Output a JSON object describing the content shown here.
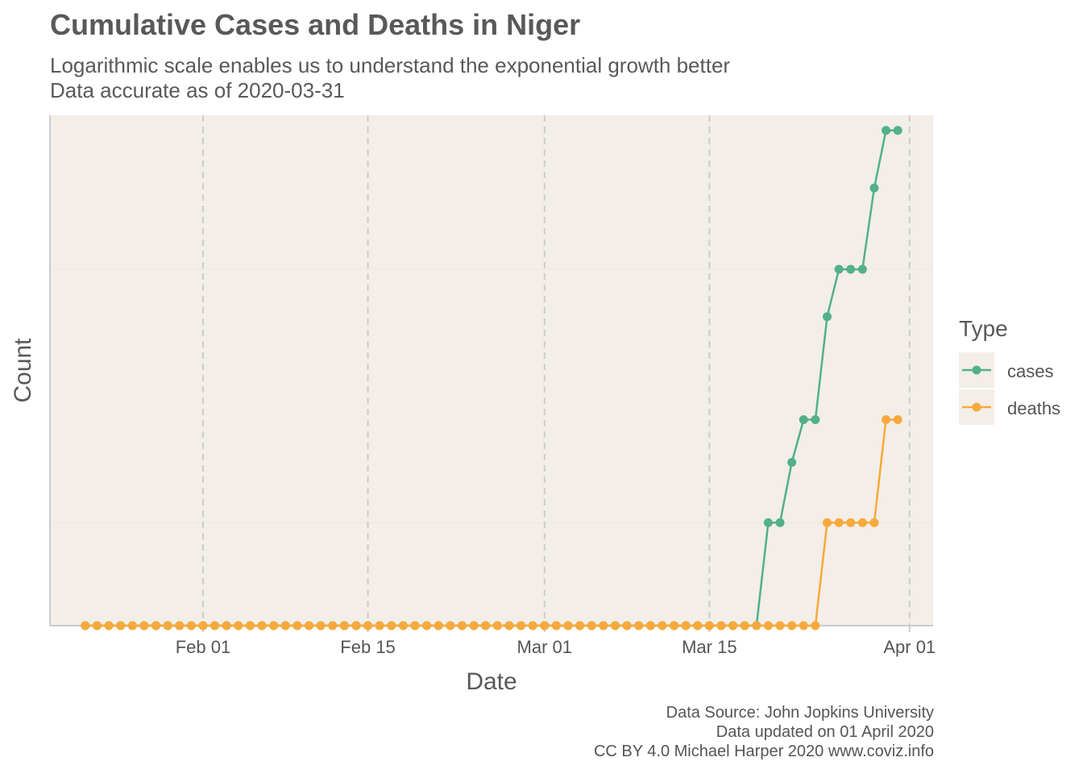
{
  "title": "Cumulative Cases and Deaths in Niger",
  "subtitle_line1": "Logarithmic scale enables us to understand the exponential growth better",
  "subtitle_line2": "Data accurate as of 2020-03-31",
  "captions": {
    "line1": "Data Source: John Jopkins University",
    "line2": "Data updated on 01 April 2020",
    "line3": "CC BY 4.0 Michael Harper 2020 www.coviz.info"
  },
  "legend": {
    "title": "Type",
    "items": [
      {
        "label": "cases",
        "color": "#52b08a"
      },
      {
        "label": "deaths",
        "color": "#f7a93b"
      }
    ]
  },
  "colors": {
    "panel_background": "#f3eee7",
    "vertical_grid": "#cccccc",
    "axis": "#cccccc"
  },
  "chart_data": {
    "type": "line",
    "title": "Cumulative Cases and Deaths in Niger",
    "xlabel": "Date",
    "ylabel": "Count",
    "y_scale": "log",
    "y_tick_labels_shown": false,
    "x_ticks": [
      {
        "date": "2020-02-01",
        "label": "Feb 01"
      },
      {
        "date": "2020-02-15",
        "label": "Feb 15"
      },
      {
        "date": "2020-03-01",
        "label": "Mar 01"
      },
      {
        "date": "2020-03-15",
        "label": "Mar 15"
      },
      {
        "date": "2020-04-01",
        "label": "Apr 01"
      }
    ],
    "xlim": [
      "2020-01-19",
      "2020-04-03"
    ],
    "ylim": [
      0,
      30
    ],
    "grid": "vertical dashed at x ticks",
    "legend_position": "right",
    "dates": [
      "2020-01-22",
      "2020-01-23",
      "2020-01-24",
      "2020-01-25",
      "2020-01-26",
      "2020-01-27",
      "2020-01-28",
      "2020-01-29",
      "2020-01-30",
      "2020-01-31",
      "2020-02-01",
      "2020-02-02",
      "2020-02-03",
      "2020-02-04",
      "2020-02-05",
      "2020-02-06",
      "2020-02-07",
      "2020-02-08",
      "2020-02-09",
      "2020-02-10",
      "2020-02-11",
      "2020-02-12",
      "2020-02-13",
      "2020-02-14",
      "2020-02-15",
      "2020-02-16",
      "2020-02-17",
      "2020-02-18",
      "2020-02-19",
      "2020-02-20",
      "2020-02-21",
      "2020-02-22",
      "2020-02-23",
      "2020-02-24",
      "2020-02-25",
      "2020-02-26",
      "2020-02-27",
      "2020-02-28",
      "2020-02-29",
      "2020-03-01",
      "2020-03-02",
      "2020-03-03",
      "2020-03-04",
      "2020-03-05",
      "2020-03-06",
      "2020-03-07",
      "2020-03-08",
      "2020-03-09",
      "2020-03-10",
      "2020-03-11",
      "2020-03-12",
      "2020-03-13",
      "2020-03-14",
      "2020-03-15",
      "2020-03-16",
      "2020-03-17",
      "2020-03-18",
      "2020-03-19",
      "2020-03-20",
      "2020-03-21",
      "2020-03-22",
      "2020-03-23",
      "2020-03-24",
      "2020-03-25",
      "2020-03-26",
      "2020-03-27",
      "2020-03-28",
      "2020-03-29",
      "2020-03-30",
      "2020-03-31"
    ],
    "series": [
      {
        "name": "cases",
        "color": "#52b08a",
        "values": [
          0,
          0,
          0,
          0,
          0,
          0,
          0,
          0,
          0,
          0,
          0,
          0,
          0,
          0,
          0,
          0,
          0,
          0,
          0,
          0,
          0,
          0,
          0,
          0,
          0,
          0,
          0,
          0,
          0,
          0,
          0,
          0,
          0,
          0,
          0,
          0,
          0,
          0,
          0,
          0,
          0,
          0,
          0,
          0,
          0,
          0,
          0,
          0,
          0,
          0,
          0,
          0,
          0,
          0,
          0,
          0,
          0,
          0,
          1,
          1,
          2,
          3,
          3,
          7,
          10,
          10,
          10,
          18,
          27,
          27
        ]
      },
      {
        "name": "deaths",
        "color": "#f7a93b",
        "values": [
          0,
          0,
          0,
          0,
          0,
          0,
          0,
          0,
          0,
          0,
          0,
          0,
          0,
          0,
          0,
          0,
          0,
          0,
          0,
          0,
          0,
          0,
          0,
          0,
          0,
          0,
          0,
          0,
          0,
          0,
          0,
          0,
          0,
          0,
          0,
          0,
          0,
          0,
          0,
          0,
          0,
          0,
          0,
          0,
          0,
          0,
          0,
          0,
          0,
          0,
          0,
          0,
          0,
          0,
          0,
          0,
          0,
          0,
          0,
          0,
          0,
          0,
          0,
          1,
          1,
          1,
          1,
          1,
          3,
          3
        ]
      }
    ]
  }
}
